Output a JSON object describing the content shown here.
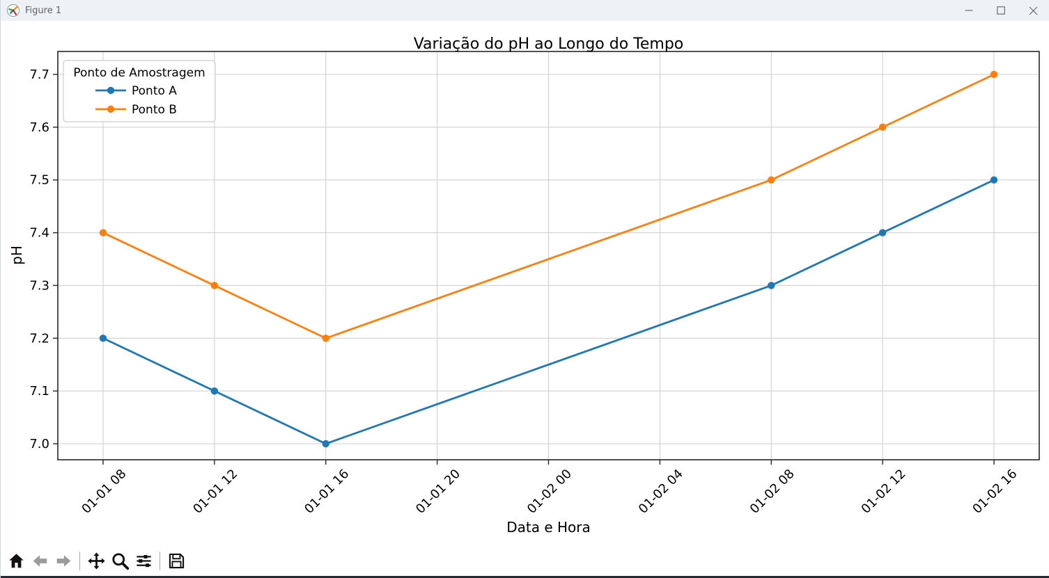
{
  "window": {
    "title": "Figure 1"
  },
  "chart_data": {
    "type": "line",
    "title": "Variação do pH ao Longo do Tempo",
    "xlabel": "Data e Hora",
    "ylabel": "pH",
    "x_tick_hours": [
      8,
      12,
      16,
      20,
      24,
      28,
      32,
      36,
      40
    ],
    "x_tick_labels": [
      "01-01 08",
      "01-01 12",
      "01-01 16",
      "01-01 20",
      "01-02 00",
      "01-02 04",
      "01-02 08",
      "01-02 12",
      "01-02 16"
    ],
    "y_ticks": [
      7.0,
      7.1,
      7.2,
      7.3,
      7.4,
      7.5,
      7.6,
      7.7
    ],
    "xlim_hours": [
      6.37,
      41.63
    ],
    "ylim": [
      6.965,
      7.735
    ],
    "grid": true,
    "legend": {
      "title": "Ponto de Amostragem",
      "position": "upper-left",
      "entries": [
        "Ponto A",
        "Ponto B"
      ]
    },
    "series": [
      {
        "name": "Ponto A",
        "color": "#1f77b4",
        "marker": "o",
        "x_hours": [
          8,
          12,
          16,
          32,
          36,
          40
        ],
        "x_labels": [
          "01-01 08",
          "01-01 12",
          "01-01 16",
          "01-02 08",
          "01-02 12",
          "01-02 16"
        ],
        "values": [
          7.2,
          7.1,
          7.0,
          7.3,
          7.4,
          7.5
        ]
      },
      {
        "name": "Ponto B",
        "color": "#ff7f0e",
        "marker": "o",
        "x_hours": [
          8,
          12,
          16,
          32,
          36,
          40
        ],
        "x_labels": [
          "01-01 08",
          "01-01 12",
          "01-01 16",
          "01-02 08",
          "01-02 12",
          "01-02 16"
        ],
        "values": [
          7.4,
          7.3,
          7.2,
          7.5,
          7.6,
          7.7
        ]
      }
    ],
    "colors": {
      "grid": "#cccccc",
      "spine": "#262626",
      "text": "#000000",
      "background": "#ffffff"
    }
  },
  "toolbar": {
    "buttons": [
      "home",
      "back",
      "forward",
      "pan",
      "zoom",
      "configure-subplots",
      "save"
    ],
    "disabled_buttons": [
      "back",
      "forward"
    ]
  }
}
